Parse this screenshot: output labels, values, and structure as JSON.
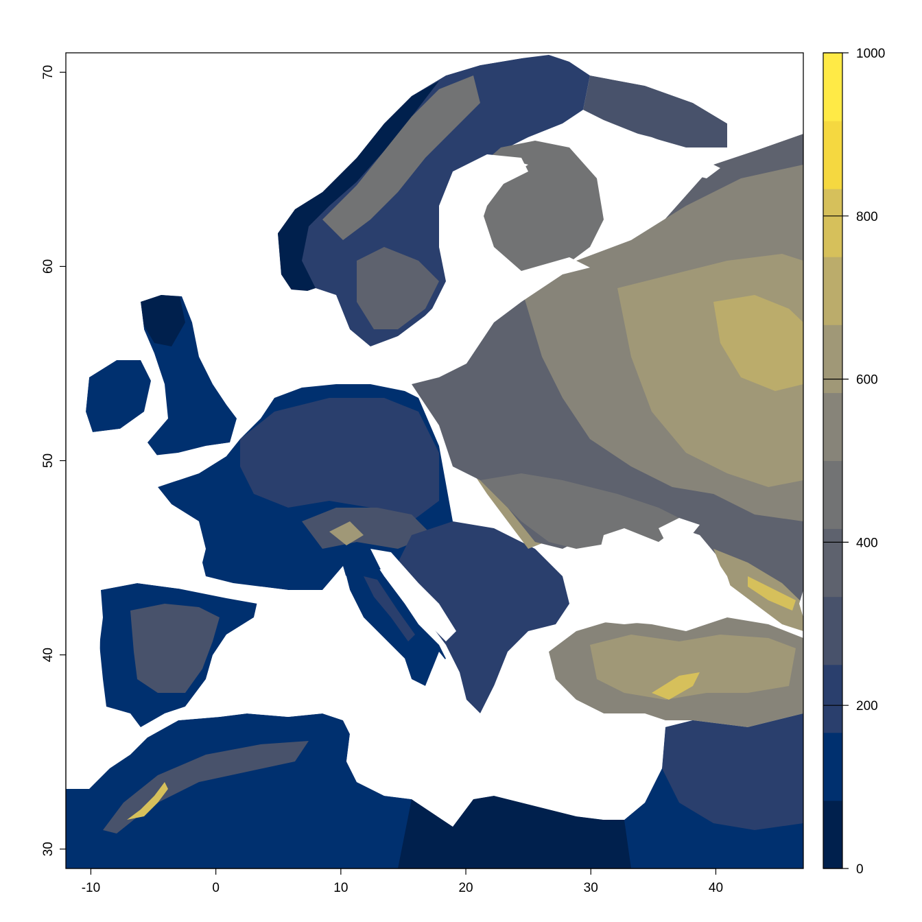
{
  "map": {
    "x_axis": {
      "range": [
        -12,
        47
      ],
      "ticks": [
        -10,
        0,
        10,
        20,
        30,
        40
      ],
      "tick_labels": [
        "-10",
        "0",
        "10",
        "20",
        "30",
        "40"
      ]
    },
    "y_axis": {
      "range": [
        29,
        71
      ],
      "ticks": [
        30,
        40,
        50,
        60,
        70
      ],
      "tick_labels": [
        "30",
        "40",
        "50",
        "60",
        "70"
      ]
    },
    "sea_color": "#ffffff",
    "legend": {
      "range": [
        0,
        1000
      ],
      "tick_values": [
        0,
        200,
        400,
        600,
        800,
        1000
      ],
      "tick_labels": [
        "0",
        "200",
        "400",
        "600",
        "800",
        "1000"
      ],
      "colors": [
        "#00204d",
        "#00306f",
        "#2a3f6d",
        "#48526b",
        "#5e626e",
        "#727374",
        "#878479",
        "#a09877",
        "#bbac6b",
        "#d6c05b",
        "#f5d840",
        "#ffea46"
      ]
    }
  }
}
